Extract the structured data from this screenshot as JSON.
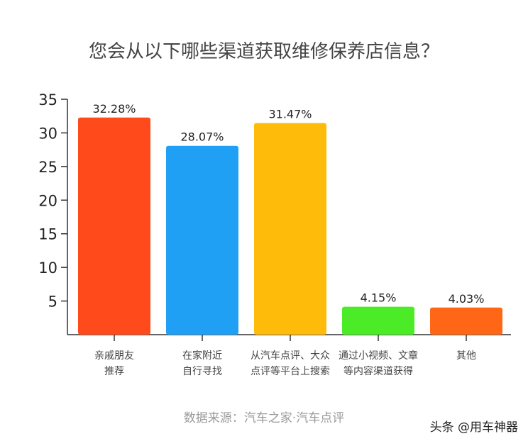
{
  "chart_data": {
    "type": "bar",
    "title": "您会从以下哪些渠道获取维修保养店信息？",
    "categories": [
      [
        "亲戚朋友",
        "推荐"
      ],
      [
        "在家附近",
        "自行寻找"
      ],
      [
        "从汽车点评、大众",
        "点评等平台上搜索"
      ],
      [
        "通过小视频、文章",
        "等内容渠道获得"
      ],
      [
        "其他"
      ]
    ],
    "values": [
      32.28,
      28.07,
      31.47,
      4.15,
      4.03
    ],
    "data_labels": [
      "32.28%",
      "28.07%",
      "31.47%",
      "4.15%",
      "4.03%"
    ],
    "colors": [
      "#FF4A1C",
      "#1FA0F5",
      "#FFBB0A",
      "#4CEB27",
      "#FF6616"
    ],
    "ylim": [
      0,
      35
    ],
    "yticks": [
      5,
      10,
      15,
      20,
      25,
      30,
      35
    ],
    "xlabel": "",
    "ylabel": "",
    "grid": false,
    "legend": "none"
  },
  "source": "数据来源：汽车之家·汽车点评",
  "watermark": "头条 @用车神器"
}
